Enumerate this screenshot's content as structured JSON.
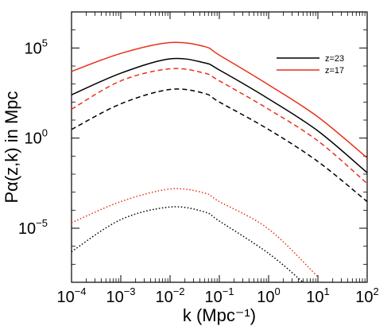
{
  "chart_data": {
    "type": "line",
    "xlabel": "k (Mpc⁻¹)",
    "ylabel": "Pα(z,k) in Mpc",
    "xscale": "log",
    "yscale": "log",
    "xlim": [
      0.0001,
      100
    ],
    "ylim": [
      1e-08,
      10000000.0
    ],
    "x_ticks": [
      {
        "value": 0.0001,
        "base": "10",
        "exp": "−4"
      },
      {
        "value": 0.001,
        "base": "10",
        "exp": "−3"
      },
      {
        "value": 0.01,
        "base": "10",
        "exp": "−2"
      },
      {
        "value": 0.1,
        "base": "10",
        "exp": "−1"
      },
      {
        "value": 1,
        "base": "10",
        "exp": "0"
      },
      {
        "value": 10,
        "base": "10",
        "exp": "1"
      },
      {
        "value": 100,
        "base": "10",
        "exp": "2"
      }
    ],
    "y_ticks": [
      {
        "value": 1e-05,
        "base": "10",
        "exp": "−5"
      },
      {
        "value": 1,
        "base": "10",
        "exp": "0"
      },
      {
        "value": 100000.0,
        "base": "10",
        "exp": "5"
      }
    ],
    "legend": {
      "placement": "top-right",
      "entries": [
        {
          "label": "z=23",
          "color": "#000000"
        },
        {
          "label": "z=17",
          "color": "#e8311a"
        }
      ]
    },
    "series": [
      {
        "style": "solid",
        "color": "#e8311a",
        "x": [
          0.0001,
          0.001,
          0.01,
          0.05,
          0.1,
          1,
          10,
          100
        ],
        "y": [
          5000,
          50000,
          200000,
          120000,
          40000,
          900,
          15,
          0.08
        ]
      },
      {
        "style": "solid",
        "color": "#000000",
        "x": [
          0.0001,
          0.001,
          0.01,
          0.05,
          0.1,
          1,
          10,
          100
        ],
        "y": [
          250,
          4000,
          25000,
          15000,
          6000,
          150,
          2.5,
          0.012
        ]
      },
      {
        "style": "dashed",
        "color": "#e8311a",
        "x": [
          0.0001,
          0.001,
          0.01,
          0.05,
          0.1,
          1,
          10,
          100
        ],
        "y": [
          40,
          1500,
          7000,
          4000,
          1500,
          40,
          0.7,
          0.003
        ]
      },
      {
        "style": "dashed",
        "color": "#000000",
        "x": [
          0.0001,
          0.001,
          0.01,
          0.05,
          0.1,
          1,
          10,
          100
        ],
        "y": [
          3,
          80,
          500,
          300,
          100,
          3,
          0.05,
          0.0003
        ]
      },
      {
        "style": "dotted",
        "color": "#e8311a",
        "x": [
          0.0001,
          0.001,
          0.01,
          0.05,
          0.1,
          1,
          10
        ],
        "y": [
          2e-05,
          0.0003,
          0.0015,
          0.0009,
          0.0003,
          9e-06,
          2e-08
        ]
      },
      {
        "style": "dotted",
        "color": "#000000",
        "x": [
          0.0001,
          0.001,
          0.01,
          0.05,
          0.1,
          1,
          5
        ],
        "y": [
          5e-07,
          3e-05,
          0.00015,
          8e-05,
          2.5e-05,
          4e-07,
          1e-08
        ]
      }
    ]
  }
}
